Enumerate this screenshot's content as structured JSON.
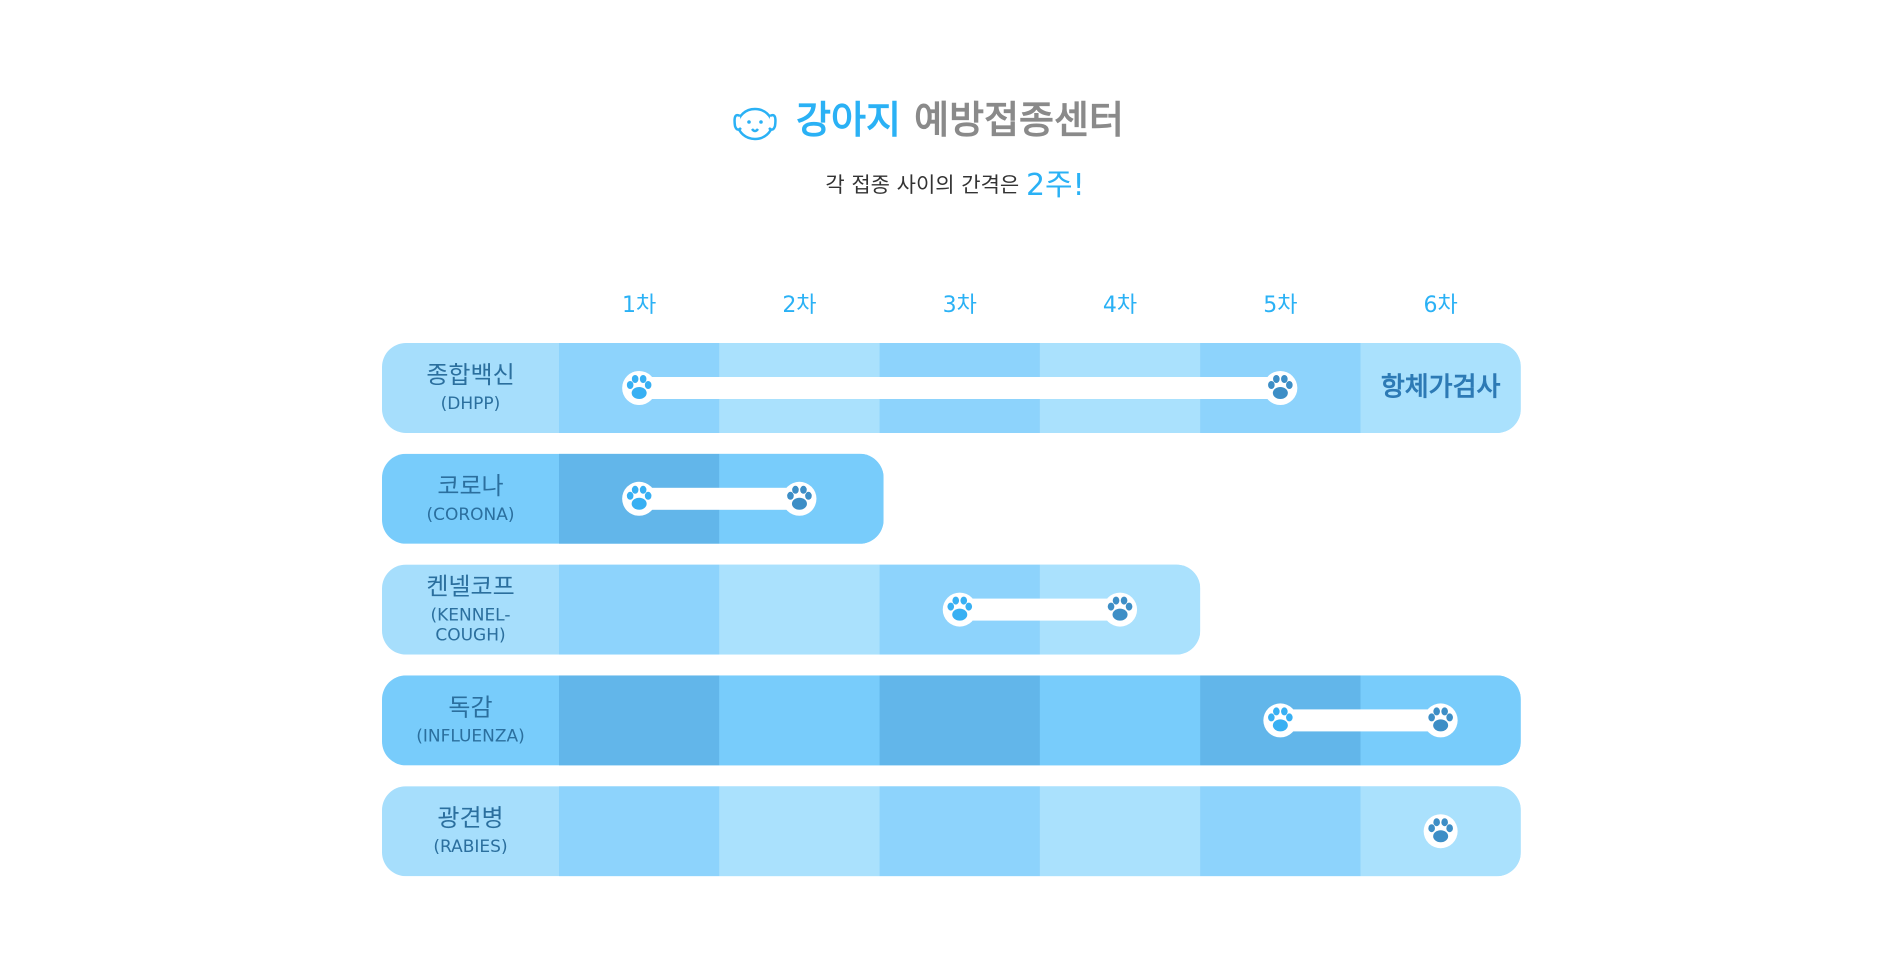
{
  "header": {
    "title_accent": "강아지",
    "title_rest": "예방접종센터",
    "subtitle": "각 접종 사이의 간격은",
    "subtitle_accent": "2주!"
  },
  "columns": [
    "1차",
    "2차",
    "3차",
    "4차",
    "5차",
    "6차"
  ],
  "rows": [
    {
      "name": "종합백신",
      "en": [
        "(DHPP)"
      ],
      "note": "항체가검사"
    },
    {
      "name": "코로나",
      "en": [
        "(CORONA)"
      ]
    },
    {
      "name": "켄넬코프",
      "en": [
        "(KENNEL-",
        "COUGH)"
      ]
    },
    {
      "name": "독감",
      "en": [
        "(INFLUENZA)"
      ]
    },
    {
      "name": "광견병",
      "en": [
        "(RABIES)"
      ]
    }
  ]
}
